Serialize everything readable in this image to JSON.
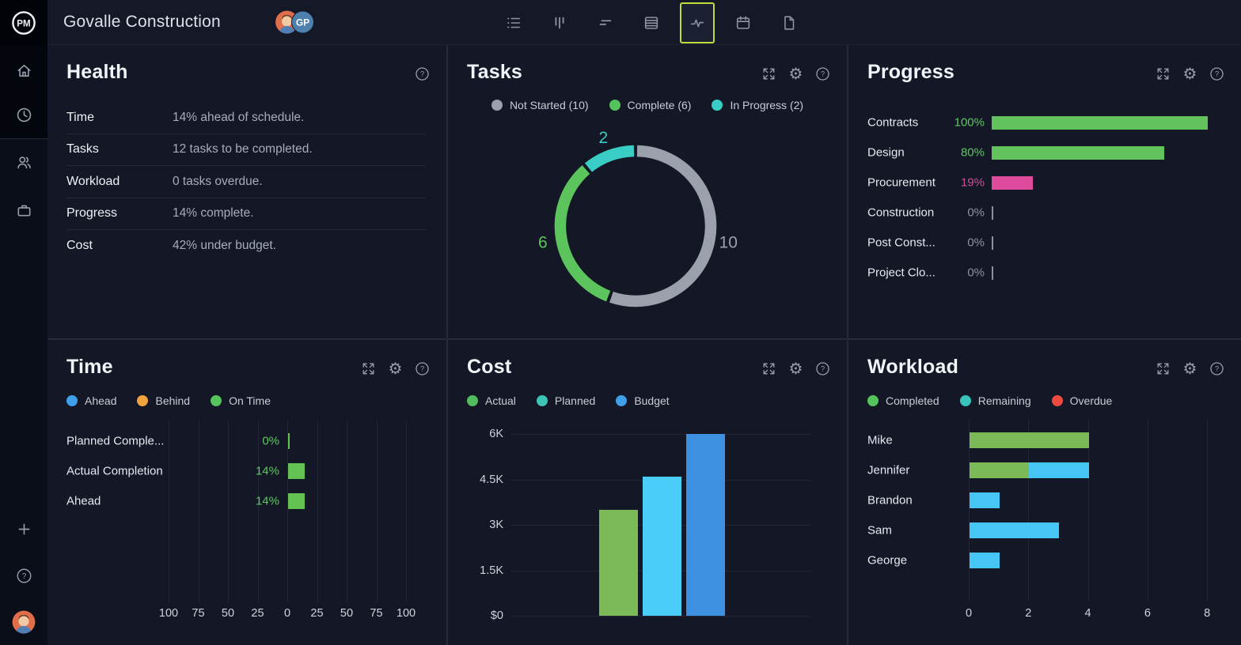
{
  "theme": {
    "page_bg": "#0e121d",
    "panel_bg": "#141826",
    "topbar_bg": "#141827",
    "active_tool_highlight": "#c3da3d",
    "green": "#5cc45c",
    "chart_green": "#7cba57",
    "sky_blue": "#4acdf8",
    "blue": "#3f97e6",
    "teal": "#3ac9c0",
    "orange": "#f0a23e",
    "red": "#ee4b40",
    "pink": "#de4b9c",
    "gray": "#9ba1ac"
  },
  "topbar": {
    "title": "Govalle Construction",
    "avatars": [
      {
        "type": "photo",
        "name": "member-avatar"
      },
      {
        "type": "initials",
        "text": "GP",
        "color": "#4d80ad"
      }
    ],
    "tools": [
      {
        "name": "list-view",
        "active": false
      },
      {
        "name": "board-view",
        "active": false
      },
      {
        "name": "gantt-view",
        "active": false
      },
      {
        "name": "sheet-view",
        "active": false
      },
      {
        "name": "dashboard-view",
        "active": true
      },
      {
        "name": "calendar-view",
        "active": false
      },
      {
        "name": "docs-view",
        "active": false
      }
    ]
  },
  "sidebar": {
    "top_icons": [
      "home",
      "clock"
    ],
    "mid_icons": [
      "users",
      "briefcase"
    ],
    "bottom_icons": [
      "plus",
      "help"
    ],
    "avatar": true
  },
  "panels": {
    "health": {
      "title": "Health",
      "header_icons": [
        "help"
      ],
      "rows": [
        {
          "label": "Time",
          "value": "14% ahead of schedule."
        },
        {
          "label": "Tasks",
          "value": "12 tasks to be completed."
        },
        {
          "label": "Workload",
          "value": "0 tasks overdue."
        },
        {
          "label": "Progress",
          "value": "14% complete."
        },
        {
          "label": "Cost",
          "value": "42% under budget."
        }
      ]
    },
    "tasks": {
      "title": "Tasks",
      "header_icons": [
        "expand",
        "settings",
        "help"
      ],
      "legend": [
        {
          "label": "Not Started (10)",
          "color": "#9ba1ac"
        },
        {
          "label": "Complete (6)",
          "color": "#55c35c"
        },
        {
          "label": "In Progress (2)",
          "color": "#39cdc5"
        }
      ],
      "chart_data": {
        "type": "donut",
        "total": 18,
        "segments": [
          {
            "label": "Not Started",
            "value": 10,
            "color": "#9ba1ac"
          },
          {
            "label": "Complete",
            "value": 6,
            "color": "#5cc45c"
          },
          {
            "label": "In Progress",
            "value": 2,
            "color": "#39cdc5"
          }
        ]
      }
    },
    "progress": {
      "title": "Progress",
      "header_icons": [
        "expand",
        "settings",
        "help"
      ],
      "chart_data": {
        "type": "bar",
        "orientation": "horizontal",
        "max": 100,
        "rows": [
          {
            "label": "Contracts",
            "pct": "100%",
            "value": 100,
            "bar_color": "#62c35d",
            "pct_color": "#5bc85f"
          },
          {
            "label": "Design",
            "pct": "80%",
            "value": 80,
            "bar_color": "#62c35d",
            "pct_color": "#5bc85f"
          },
          {
            "label": "Procurement",
            "pct": "19%",
            "value": 19,
            "bar_color": "#de4b9c",
            "pct_color": "#cf4f97"
          },
          {
            "label": "Construction",
            "pct": "0%",
            "value": 0,
            "bar_color": "#9aa0ac",
            "pct_color": "#8e94a1"
          },
          {
            "label": "Post Const...",
            "pct": "0%",
            "value": 0,
            "bar_color": "#9aa0ac",
            "pct_color": "#8e94a1"
          },
          {
            "label": "Project Clo...",
            "pct": "0%",
            "value": 0,
            "bar_color": "#9aa0ac",
            "pct_color": "#8e94a1"
          }
        ]
      }
    },
    "time": {
      "title": "Time",
      "header_icons": [
        "expand",
        "settings",
        "help"
      ],
      "legend": [
        {
          "label": "Ahead",
          "color": "#3f9fe8"
        },
        {
          "label": "Behind",
          "color": "#f0a23e"
        },
        {
          "label": "On Time",
          "color": "#56c45c"
        }
      ],
      "chart_data": {
        "type": "bar",
        "orientation": "horizontal-centered",
        "axis_ticks": [
          "100",
          "75",
          "50",
          "25",
          "0",
          "25",
          "50",
          "75",
          "100"
        ],
        "axis_range": [
          -100,
          100
        ],
        "rows": [
          {
            "label": "Planned Comple...",
            "pct": "0%",
            "value": 0,
            "bar_color": "#62c353",
            "pct_color": "#5bc85f"
          },
          {
            "label": "Actual Completion",
            "pct": "14%",
            "value": 14,
            "bar_color": "#62c353",
            "pct_color": "#5bc85f"
          },
          {
            "label": "Ahead",
            "pct": "14%",
            "value": 14,
            "bar_color": "#62c353",
            "pct_color": "#5bc85f"
          }
        ]
      }
    },
    "cost": {
      "title": "Cost",
      "header_icons": [
        "expand",
        "settings",
        "help"
      ],
      "legend": [
        {
          "label": "Actual",
          "color": "#52bb5e"
        },
        {
          "label": "Planned",
          "color": "#3cc4b4"
        },
        {
          "label": "Budget",
          "color": "#3f9fe8"
        }
      ],
      "chart_data": {
        "type": "bar",
        "orientation": "vertical",
        "y_ticks": [
          "6K",
          "4.5K",
          "3K",
          "1.5K",
          "$0"
        ],
        "y_max": 6000,
        "bars": [
          {
            "label": "Actual",
            "value": 3500,
            "color": "#7cba57"
          },
          {
            "label": "Planned",
            "value": 4600,
            "color": "#4acdf8"
          },
          {
            "label": "Budget",
            "value": 6000,
            "color": "#3e90e0"
          }
        ]
      }
    },
    "workload": {
      "title": "Workload",
      "header_icons": [
        "expand",
        "settings",
        "help"
      ],
      "legend": [
        {
          "label": "Completed",
          "color": "#56c45c"
        },
        {
          "label": "Remaining",
          "color": "#38c3bd"
        },
        {
          "label": "Overdue",
          "color": "#ee4b40"
        }
      ],
      "chart_data": {
        "type": "bar",
        "orientation": "horizontal-stacked",
        "axis_ticks": [
          "0",
          "2",
          "4",
          "6",
          "8"
        ],
        "x_max": 8,
        "rows": [
          {
            "label": "Mike",
            "segments": [
              {
                "name": "Completed",
                "value": 4,
                "color": "#7cba57"
              }
            ]
          },
          {
            "label": "Jennifer",
            "segments": [
              {
                "name": "Completed",
                "value": 2,
                "color": "#7cba57"
              },
              {
                "name": "Remaining",
                "value": 2,
                "color": "#45c6f4"
              }
            ]
          },
          {
            "label": "Brandon",
            "segments": [
              {
                "name": "Remaining",
                "value": 1,
                "color": "#45c6f4"
              }
            ]
          },
          {
            "label": "Sam",
            "segments": [
              {
                "name": "Remaining",
                "value": 3,
                "color": "#45c6f4"
              }
            ]
          },
          {
            "label": "George",
            "segments": [
              {
                "name": "Remaining",
                "value": 1,
                "color": "#45c6f4"
              }
            ]
          }
        ]
      }
    }
  }
}
